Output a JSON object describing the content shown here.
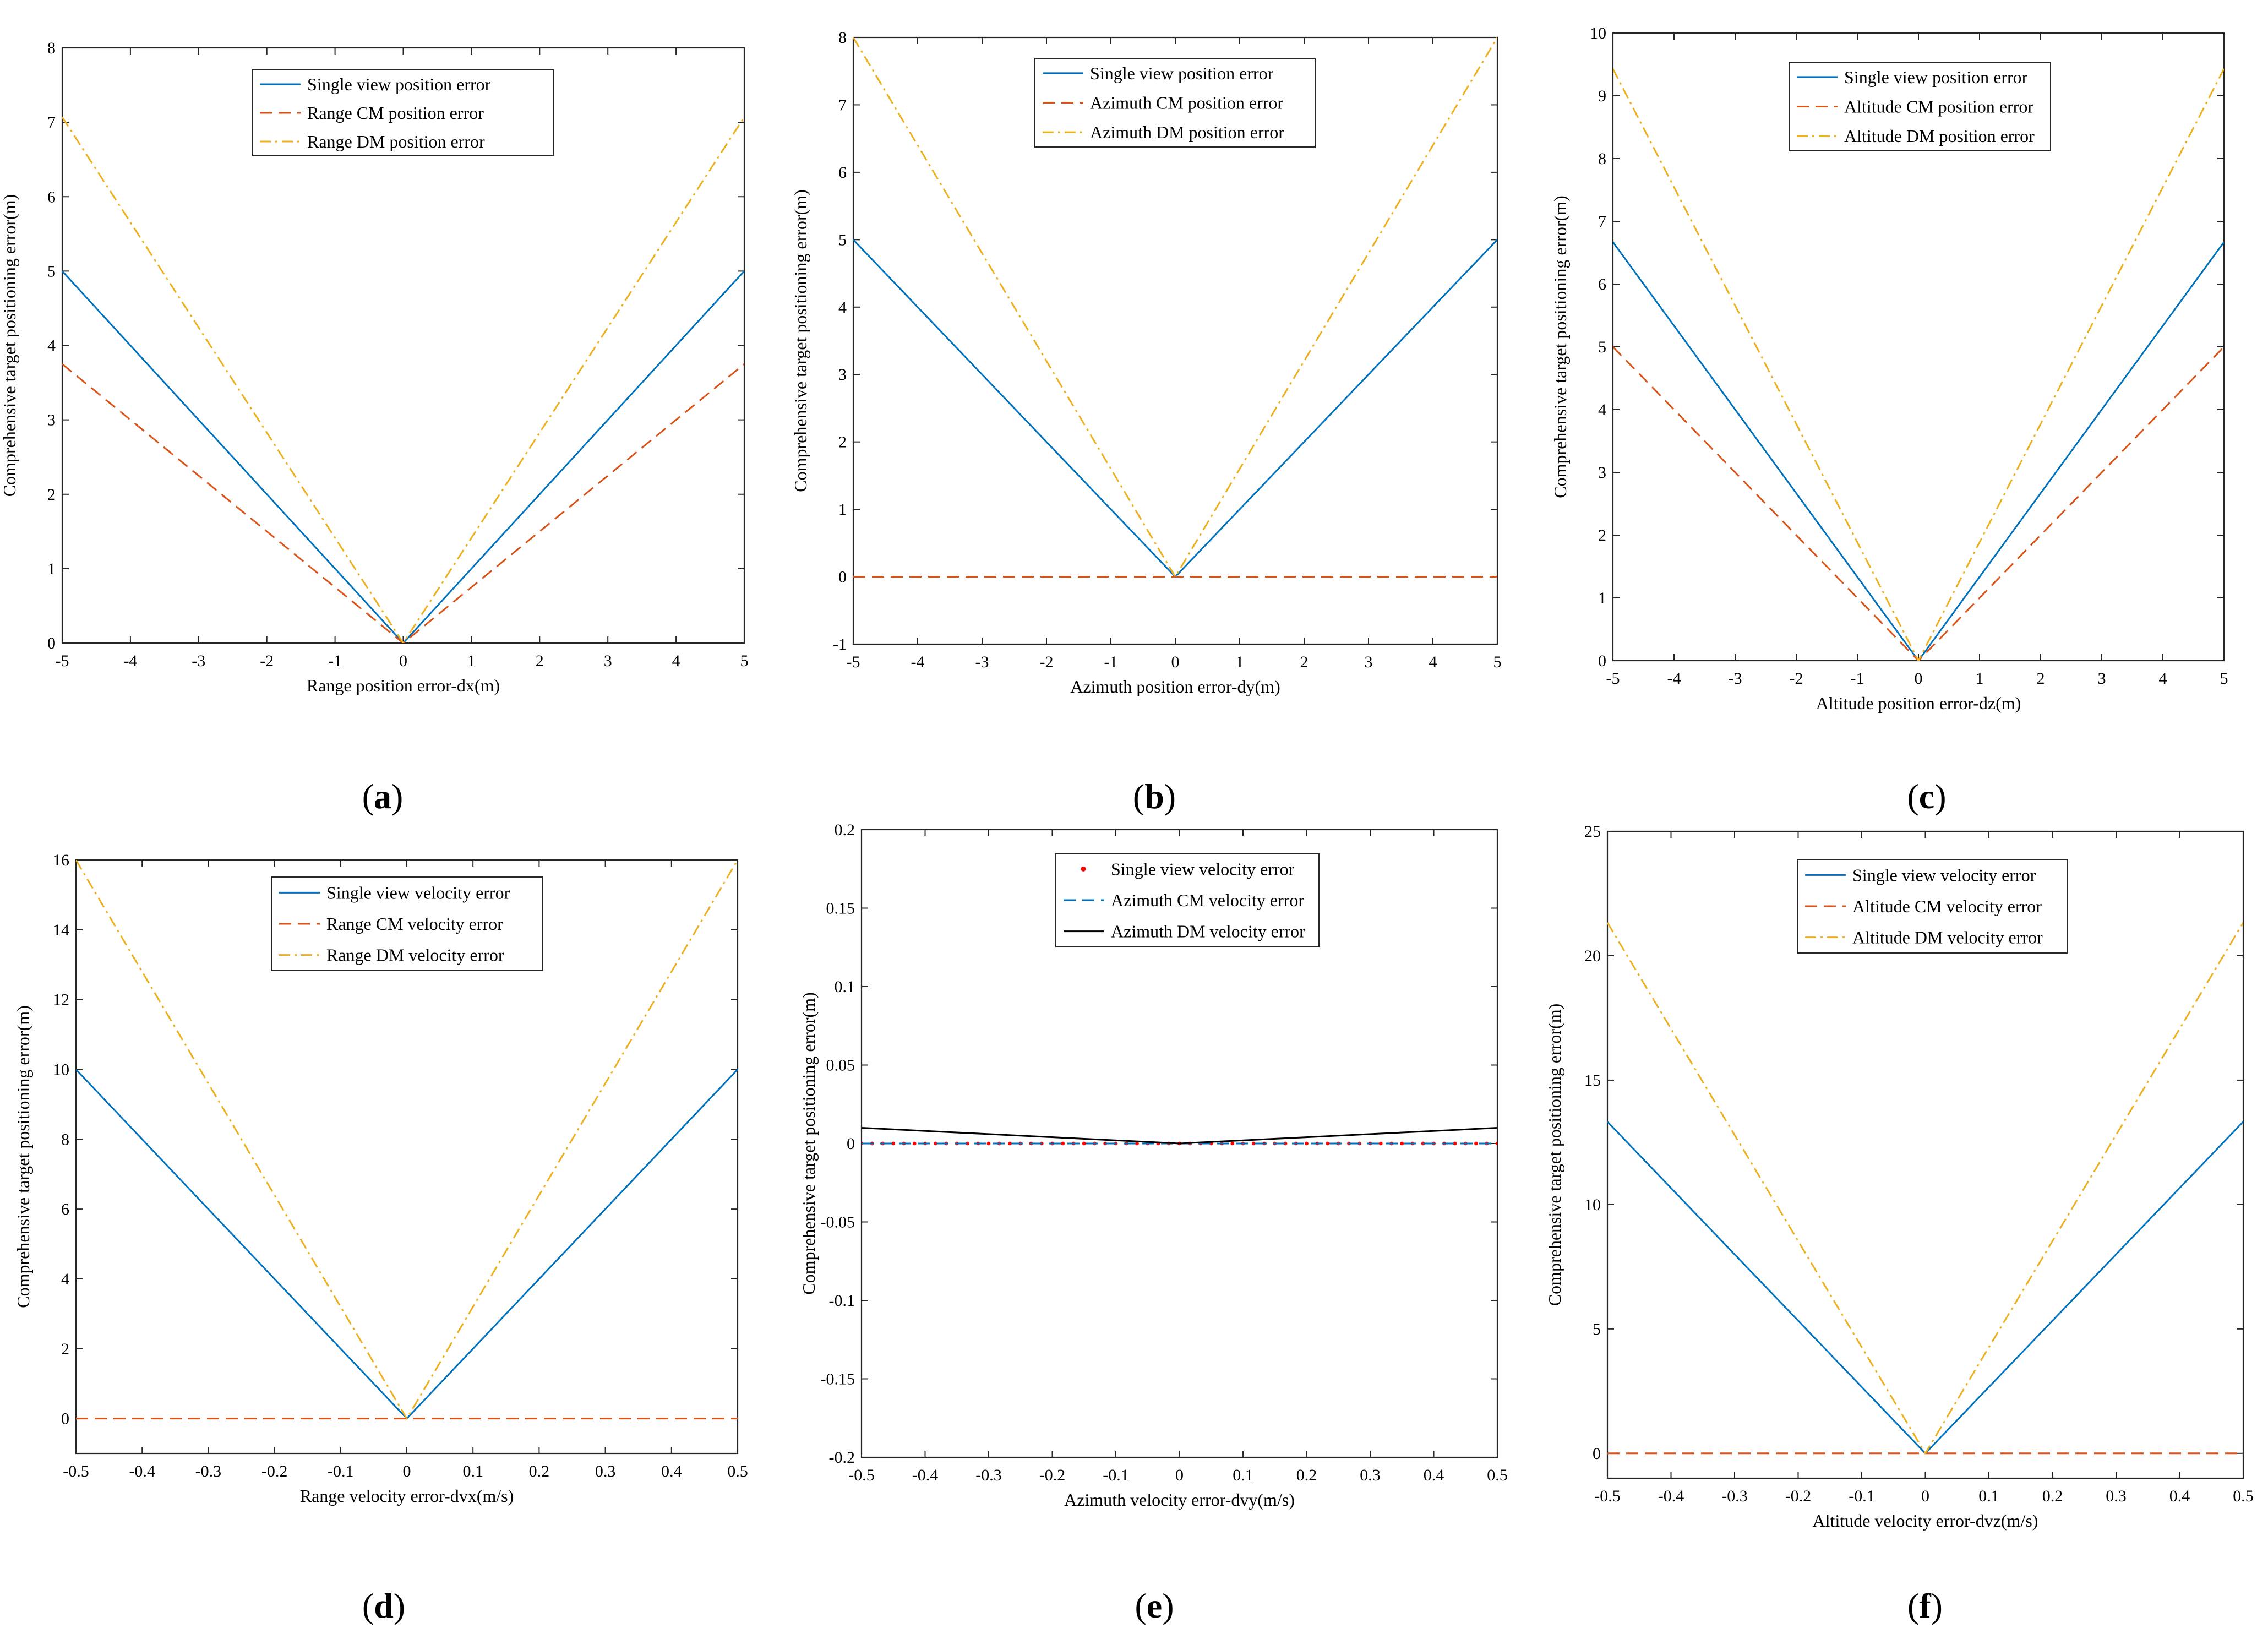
{
  "colors": {
    "blue": "#0072BD",
    "orange": "#D95319",
    "yellow": "#EDB120",
    "red": "#FF0000",
    "black": "#000000"
  },
  "chart_data": [
    {
      "type": "line",
      "caption": {
        "open": "(",
        "letter": "a",
        "close": ")"
      },
      "xlabel": "Range position error-dx(m)",
      "ylabel": "Comprehensive target positioning error(m)",
      "xlim": [
        -5,
        5
      ],
      "ylim": [
        0,
        8
      ],
      "xticks": [
        "-5",
        "-4",
        "-3",
        "-2",
        "-1",
        "0",
        "1",
        "2",
        "3",
        "4",
        "5"
      ],
      "yticks": [
        "0",
        "1",
        "2",
        "3",
        "4",
        "5",
        "6",
        "7",
        "8"
      ],
      "legend_position": "top-center",
      "series": [
        {
          "name": "Single view position error",
          "x": [
            -5,
            0,
            5
          ],
          "y": [
            5,
            0,
            5
          ],
          "color": "#0072BD",
          "style": "solid"
        },
        {
          "name": "Range CM position error",
          "x": [
            -5,
            0,
            5
          ],
          "y": [
            3.75,
            0,
            3.75
          ],
          "color": "#D95319",
          "style": "dashed"
        },
        {
          "name": "Range DM position error",
          "x": [
            -5,
            0,
            5
          ],
          "y": [
            7.07,
            0,
            7.07
          ],
          "color": "#EDB120",
          "style": "dashdot"
        }
      ]
    },
    {
      "type": "line",
      "caption": {
        "open": "(",
        "letter": "b",
        "close": ")"
      },
      "xlabel": "Azimuth position error-dy(m)",
      "ylabel": "Comprehensive target positioning  error(m)",
      "xlim": [
        -5,
        5
      ],
      "ylim": [
        -1,
        8
      ],
      "xticks": [
        "-5",
        "-4",
        "-3",
        "-2",
        "-1",
        "0",
        "1",
        "2",
        "3",
        "4",
        "5"
      ],
      "yticks": [
        "-1",
        "0",
        "1",
        "2",
        "3",
        "4",
        "5",
        "6",
        "7",
        "8"
      ],
      "legend_position": "top-center",
      "series": [
        {
          "name": "Single view position error",
          "x": [
            -5,
            0,
            5
          ],
          "y": [
            5,
            0,
            5
          ],
          "color": "#0072BD",
          "style": "solid"
        },
        {
          "name": "Azimuth CM position error",
          "x": [
            -5,
            0,
            5
          ],
          "y": [
            0,
            0,
            0
          ],
          "color": "#D95319",
          "style": "dashed"
        },
        {
          "name": "Azimuth DM position error",
          "x": [
            -5,
            0,
            5
          ],
          "y": [
            8,
            0,
            8
          ],
          "color": "#EDB120",
          "style": "dashdot"
        }
      ]
    },
    {
      "type": "line",
      "caption": {
        "open": "(",
        "letter": "c",
        "close": ")"
      },
      "xlabel": "Altitude position error-dz(m)",
      "ylabel": "Comprehensive target positioning error(m)",
      "xlim": [
        -5,
        5
      ],
      "ylim": [
        0,
        10
      ],
      "xticks": [
        "-5",
        "-4",
        "-3",
        "-2",
        "-1",
        "0",
        "1",
        "2",
        "3",
        "4",
        "5"
      ],
      "yticks": [
        "0",
        "1",
        "2",
        "3",
        "4",
        "5",
        "6",
        "7",
        "8",
        "9",
        "10"
      ],
      "legend_position": "top-center",
      "series": [
        {
          "name": "Single view position error",
          "x": [
            -5,
            0,
            5
          ],
          "y": [
            6.67,
            0,
            6.67
          ],
          "color": "#0072BD",
          "style": "solid"
        },
        {
          "name": "Altitude CM position error",
          "x": [
            -5,
            0,
            5
          ],
          "y": [
            5,
            0,
            5
          ],
          "color": "#D95319",
          "style": "dashed"
        },
        {
          "name": "Altitude DM position error",
          "x": [
            -5,
            0,
            5
          ],
          "y": [
            9.43,
            0,
            9.43
          ],
          "color": "#EDB120",
          "style": "dashdot"
        }
      ]
    },
    {
      "type": "line",
      "caption": {
        "open": "(",
        "letter": "d",
        "close": ")"
      },
      "xlabel": "Range velocity error-dvx(m/s)",
      "ylabel": "Comprehensive target positioning error(m)",
      "xlim": [
        -0.5,
        0.5
      ],
      "ylim": [
        -1,
        16
      ],
      "xticks": [
        "-0.5",
        "-0.4",
        "-0.3",
        "-0.2",
        "-0.1",
        "0",
        "0.1",
        "0.2",
        "0.3",
        "0.4",
        "0.5"
      ],
      "yticks": [
        "0",
        "2",
        "4",
        "6",
        "8",
        "10",
        "12",
        "14",
        "16"
      ],
      "legend_position": "top-center",
      "series": [
        {
          "name": "Single view velocity error",
          "x": [
            -0.5,
            0,
            0.5
          ],
          "y": [
            10,
            0,
            10
          ],
          "color": "#0072BD",
          "style": "solid"
        },
        {
          "name": "Range CM velocity error",
          "x": [
            -0.5,
            0,
            0.5
          ],
          "y": [
            0,
            0,
            0
          ],
          "color": "#D95319",
          "style": "dashed"
        },
        {
          "name": "Range DM velocity error",
          "x": [
            -0.5,
            0,
            0.5
          ],
          "y": [
            16,
            0,
            16
          ],
          "color": "#EDB120",
          "style": "dashdot"
        }
      ]
    },
    {
      "type": "line",
      "caption": {
        "open": "(",
        "letter": "e",
        "close": ")"
      },
      "xlabel": "Azimuth velocity error-dvy(m/s)",
      "ylabel": "Comprehensive target positioning error(m)",
      "xlim": [
        -0.5,
        0.5
      ],
      "ylim": [
        -0.2,
        0.2
      ],
      "xticks": [
        "-0.5",
        "-0.4",
        "-0.3",
        "-0.2",
        "-0.1",
        "0",
        "0.1",
        "0.2",
        "0.3",
        "0.4",
        "0.5"
      ],
      "yticks": [
        "-0.2",
        "-0.15",
        "-0.1",
        "-0.05",
        "0",
        "0.05",
        "0.1",
        "0.15",
        "0.2"
      ],
      "legend_position": "top-center",
      "series": [
        {
          "name": "Single view velocity error",
          "x": [
            -0.5,
            0.5
          ],
          "y": [
            0,
            0
          ],
          "color": "#FF0000",
          "style": "dots"
        },
        {
          "name": "Azimuth CM velocity error",
          "x": [
            -0.5,
            0.5
          ],
          "y": [
            0,
            0
          ],
          "color": "#0072BD",
          "style": "dashed"
        },
        {
          "name": "Azimuth DM velocity error",
          "x": [
            -0.5,
            0,
            0.5
          ],
          "y": [
            0.01,
            0,
            0.01
          ],
          "color": "#000000",
          "style": "solid"
        }
      ]
    },
    {
      "type": "line",
      "caption": {
        "open": "(",
        "letter": "f",
        "close": ")"
      },
      "xlabel": "Altitude velocity error-dvz(m/s)",
      "ylabel": "Comprehensive target positioning error(m)",
      "xlim": [
        -0.5,
        0.5
      ],
      "ylim": [
        -1,
        25
      ],
      "xticks": [
        "-0.5",
        "-0.4",
        "-0.3",
        "-0.2",
        "-0.1",
        "0",
        "0.1",
        "0.2",
        "0.3",
        "0.4",
        "0.5"
      ],
      "yticks": [
        "0",
        "5",
        "10",
        "15",
        "20",
        "25"
      ],
      "legend_position": "top-center",
      "series": [
        {
          "name": "Single view velocity error",
          "x": [
            -0.5,
            0,
            0.5
          ],
          "y": [
            13.33,
            0,
            13.33
          ],
          "color": "#0072BD",
          "style": "solid"
        },
        {
          "name": "Altitude CM velocity error",
          "x": [
            -0.5,
            0,
            0.5
          ],
          "y": [
            0,
            0,
            0
          ],
          "color": "#D95319",
          "style": "dashed"
        },
        {
          "name": "Altitude DM velocity error",
          "x": [
            -0.5,
            0,
            0.5
          ],
          "y": [
            21.33,
            0,
            21.33
          ],
          "color": "#EDB120",
          "style": "dashdot"
        }
      ]
    }
  ]
}
